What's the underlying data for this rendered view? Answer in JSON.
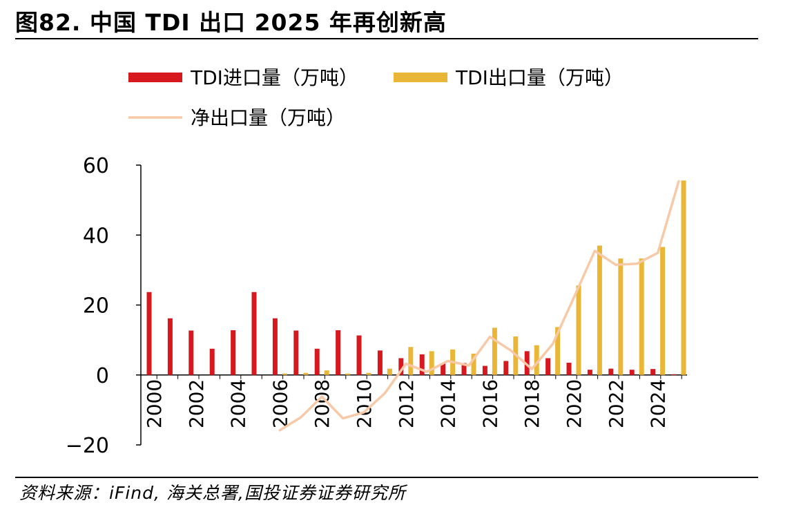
{
  "title": "图82. 中国 TDI 出口 2025 年再创新高",
  "source": "资料来源：iFind, 海关总署,国投证券证券研究所",
  "colors": {
    "import": "#D7191F",
    "export": "#E9B637",
    "net": "#F8C9A7"
  },
  "chart_data": {
    "type": "bar",
    "title": "图82. 中国 TDI 出口 2025 年再创新高",
    "categories": [
      "2000",
      "2001",
      "2002",
      "2003",
      "2004",
      "2005",
      "2006",
      "2007",
      "2008",
      "2009",
      "2010",
      "2011",
      "2012",
      "2013",
      "2014",
      "2015",
      "2016",
      "2017",
      "2018",
      "2019",
      "2020",
      "2021",
      "2022",
      "2023",
      "2024",
      "2025"
    ],
    "x_tick_labels": [
      "2000",
      "2002",
      "2004",
      "2006",
      "2008",
      "2010",
      "2012",
      "2014",
      "2016",
      "2018",
      "2020",
      "2022",
      "2024"
    ],
    "ylim": [
      -20,
      60
    ],
    "y_ticks": [
      -20,
      0,
      20,
      40,
      60
    ],
    "y_tick_labels": [
      "−20",
      "0",
      "20",
      "40",
      "60"
    ],
    "legend_position": "top",
    "grid": false,
    "series": [
      {
        "name": "TDI进口量（万吨）",
        "type": "bar",
        "values": [
          23.7,
          16.2,
          12.7,
          7.5,
          12.8,
          23.7,
          16.2,
          12.7,
          7.5,
          12.8,
          11.3,
          7.0,
          4.8,
          5.9,
          3.3,
          3.4,
          2.6,
          4.0,
          6.8,
          4.8,
          3.5,
          1.5,
          1.8,
          1.5,
          1.7,
          0.2
        ]
      },
      {
        "name": "TDI出口量（万吨）",
        "type": "bar",
        "values": [
          0,
          0,
          0,
          0,
          0,
          0,
          0.4,
          0.6,
          1.3,
          0.4,
          0.6,
          1.8,
          8.0,
          6.8,
          7.3,
          6.1,
          13.5,
          11.0,
          8.5,
          13.7,
          25.6,
          37.0,
          33.3,
          33.3,
          36.6,
          55.6
        ]
      },
      {
        "name": "净出口量（万吨）",
        "type": "line",
        "values": [
          null,
          null,
          null,
          null,
          null,
          null,
          -15.8,
          -12.1,
          -6.2,
          -12.4,
          -10.7,
          -5.2,
          3.2,
          0.9,
          4.0,
          2.7,
          10.9,
          7.0,
          1.7,
          8.9,
          22.1,
          35.5,
          31.5,
          31.8,
          34.9,
          55.4
        ]
      }
    ]
  }
}
